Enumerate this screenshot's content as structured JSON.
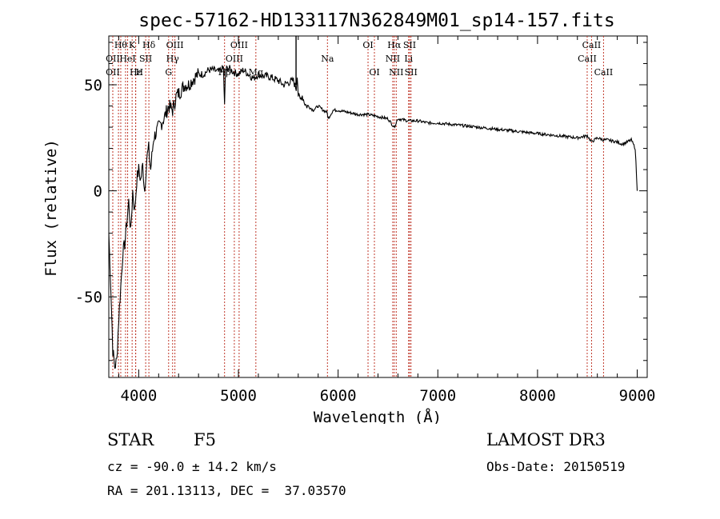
{
  "chart_data": {
    "type": "line",
    "title": "spec-57162-HD133117N362849M01_sp14-157.fits",
    "xlabel": "Wavelength (Å)",
    "ylabel": "Flux (relative)",
    "xlim": [
      3700,
      9100
    ],
    "ylim": [
      -88,
      73
    ],
    "x_ticks": [
      "4000",
      "5000",
      "6000",
      "7000",
      "8000",
      "9000"
    ],
    "y_ticks": [
      "50",
      "0",
      "-50"
    ],
    "x_tick_values": [
      4000,
      5000,
      6000,
      7000,
      8000,
      9000
    ],
    "y_tick_values": [
      50,
      0,
      -50
    ],
    "grid": false,
    "series": [
      {
        "x": [
          3700,
          3720,
          3740,
          3760,
          3780,
          3800,
          3820,
          3840,
          3860,
          3880,
          3900,
          3920,
          3940,
          3960,
          3980,
          4000,
          4020,
          4040,
          4060,
          4080,
          4100,
          4120,
          4150,
          4180,
          4200,
          4230,
          4260,
          4300,
          4340,
          4380,
          4420,
          4460,
          4500,
          4550,
          4600,
          4650,
          4700,
          4750,
          4800,
          4850,
          4861,
          4870,
          4900,
          4950,
          5000,
          5050,
          5100,
          5150,
          5200,
          5250,
          5300,
          5350,
          5400,
          5450,
          5500,
          5550,
          5580,
          5590,
          5600,
          5620,
          5640,
          5660,
          5680,
          5700,
          5750,
          5800,
          5850,
          5890,
          5900,
          5950,
          6000,
          6100,
          6200,
          6300,
          6400,
          6500,
          6562,
          6600,
          6700,
          6800,
          6900,
          7000,
          7200,
          7400,
          7600,
          7800,
          8000,
          8200,
          8400,
          8500,
          8542,
          8600,
          8662,
          8700,
          8800,
          8850,
          8900,
          8940,
          8960,
          8980,
          9000
        ],
        "y": [
          -20,
          -45,
          -75,
          -83,
          -80,
          -60,
          -45,
          -30,
          -25,
          -15,
          -5,
          -20,
          0,
          -10,
          5,
          10,
          5,
          12,
          0,
          15,
          20,
          10,
          25,
          28,
          30,
          32,
          35,
          40,
          38,
          45,
          47,
          50,
          50,
          53,
          55,
          55,
          57,
          57,
          56,
          58,
          40,
          57,
          58,
          56,
          55,
          57,
          55,
          53,
          55,
          54,
          54,
          53,
          52,
          50,
          51,
          52,
          48,
          55,
          45,
          43,
          45,
          42,
          40,
          40,
          38,
          40,
          38,
          37,
          34,
          38,
          38,
          37,
          36,
          36,
          35,
          34,
          30,
          34,
          33,
          33,
          32,
          32,
          31,
          30,
          29,
          28,
          27,
          26,
          25,
          26,
          23,
          25,
          24,
          24,
          23,
          22,
          23,
          24,
          22,
          20,
          0
        ]
      }
    ],
    "lines": [
      {
        "x": 3820,
        "label": "Hθ",
        "row": 1,
        "anchor": "middle"
      },
      {
        "x": 3740,
        "label": "OII",
        "row": 2,
        "anchor": "middle"
      },
      {
        "x": 3740,
        "label": "OII",
        "row": 3,
        "anchor": "middle"
      },
      {
        "x": 3797,
        "label": "",
        "row": 0,
        "anchor": "middle"
      },
      {
        "x": 3889,
        "label": "HeI",
        "row": 2,
        "anchor": "middle"
      },
      {
        "x": 3868,
        "label": "",
        "row": 0,
        "anchor": "middle"
      },
      {
        "x": 3934,
        "label": "K",
        "row": 1,
        "anchor": "middle"
      },
      {
        "x": 3970,
        "label": "Hε",
        "row": 3,
        "anchor": "middle"
      },
      {
        "x": 3969,
        "label": "H",
        "row": 3,
        "anchor": "start"
      },
      {
        "x": 4070,
        "label": "SII",
        "row": 2,
        "anchor": "middle"
      },
      {
        "x": 4102,
        "label": "Hδ",
        "row": 1,
        "anchor": "middle"
      },
      {
        "x": 4300,
        "label": "G",
        "row": 3,
        "anchor": "middle"
      },
      {
        "x": 4340,
        "label": "Hγ",
        "row": 2,
        "anchor": "middle"
      },
      {
        "x": 4363,
        "label": "OIII",
        "row": 1,
        "anchor": "middle"
      },
      {
        "x": 4861,
        "label": "Hβ",
        "row": 3,
        "anchor": "middle"
      },
      {
        "x": 4959,
        "label": "OIII",
        "row": 2,
        "anchor": "middle"
      },
      {
        "x": 5007,
        "label": "OIII",
        "row": 1,
        "anchor": "middle"
      },
      {
        "x": 5175,
        "label": "Mg",
        "row": 3,
        "anchor": "middle"
      },
      {
        "x": 5893,
        "label": "Na",
        "row": 2,
        "anchor": "middle"
      },
      {
        "x": 6300,
        "label": "OI",
        "row": 1,
        "anchor": "middle"
      },
      {
        "x": 6364,
        "label": "OI",
        "row": 3,
        "anchor": "middle"
      },
      {
        "x": 6548,
        "label": "NII",
        "row": 2,
        "anchor": "middle"
      },
      {
        "x": 6563,
        "label": "Hα",
        "row": 1,
        "anchor": "middle"
      },
      {
        "x": 6583,
        "label": "NII",
        "row": 3,
        "anchor": "middle"
      },
      {
        "x": 6707,
        "label": "Li",
        "row": 2,
        "anchor": "middle"
      },
      {
        "x": 6717,
        "label": "SII",
        "row": 1,
        "anchor": "middle"
      },
      {
        "x": 6731,
        "label": "SII",
        "row": 3,
        "anchor": "middle"
      },
      {
        "x": 8498,
        "label": "CaII",
        "row": 2,
        "anchor": "middle"
      },
      {
        "x": 8542,
        "label": "CaII",
        "row": 1,
        "anchor": "middle"
      },
      {
        "x": 8662,
        "label": "CaII",
        "row": 3,
        "anchor": "middle"
      }
    ]
  },
  "info": {
    "class": "STAR",
    "subclass": "F5",
    "survey": "LAMOST DR3",
    "cz": "cz = -90.0 ± 14.2 km/s",
    "obs_date": "Obs-Date: 20150519",
    "radec": "RA = 201.13113, DEC =  37.03570"
  }
}
